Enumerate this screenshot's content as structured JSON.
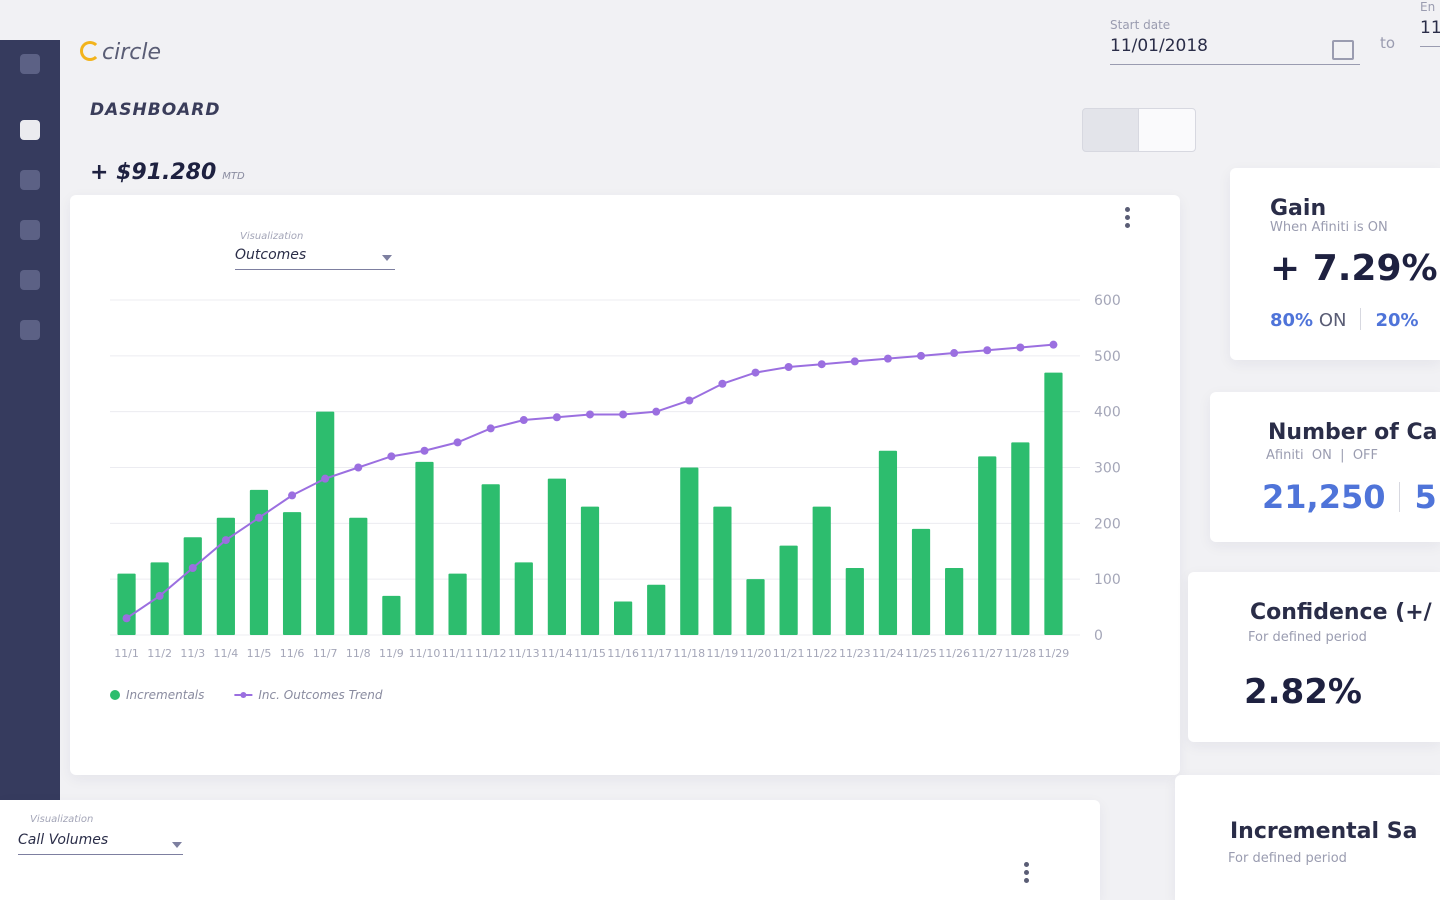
{
  "header": {
    "logo": "circle",
    "start_label": "Start date",
    "start_date": "11/01/2018",
    "to": "to",
    "end_label": "En",
    "end_date": "11"
  },
  "dashboard": {
    "title": "DASHBOARD",
    "total": "+ $91.280",
    "total_unit": "MTD"
  },
  "chart_card": {
    "visualization_label": "Visualization",
    "visualization": "Outcomes"
  },
  "chart_data": {
    "type": "bar",
    "categories": [
      "11/1",
      "11/2",
      "11/3",
      "11/4",
      "11/5",
      "11/6",
      "11/7",
      "11/8",
      "11/9",
      "11/10",
      "11/11",
      "11/12",
      "11/13",
      "11/14",
      "11/15",
      "11/16",
      "11/17",
      "11/18",
      "11/19",
      "11/20",
      "11/21",
      "11/22",
      "11/23",
      "11/24",
      "11/25",
      "11/26",
      "11/27",
      "11/28",
      "11/29"
    ],
    "series": [
      {
        "name": "Incrementals",
        "type": "bar",
        "color": "#2dbd6e",
        "values": [
          110,
          130,
          175,
          210,
          260,
          220,
          400,
          210,
          70,
          310,
          110,
          270,
          130,
          280,
          230,
          60,
          90,
          300,
          230,
          100,
          160,
          230,
          120,
          330,
          190,
          120,
          320,
          345,
          470
        ]
      },
      {
        "name": "Inc. Outcomes Trend",
        "type": "line",
        "color": "#9b6fe0",
        "values": [
          30,
          70,
          120,
          170,
          210,
          250,
          280,
          300,
          320,
          330,
          345,
          370,
          385,
          390,
          395,
          395,
          400,
          420,
          450,
          470,
          480,
          485,
          490,
          495,
          500,
          505,
          510,
          515,
          520
        ]
      }
    ],
    "ylim": [
      0,
      600
    ],
    "yticks": [
      0,
      100,
      200,
      300,
      400,
      500,
      600
    ],
    "y_axis_side": "right",
    "grid": true
  },
  "cards": [
    {
      "title": "Gain",
      "subtitle": "When Afiniti is ON",
      "value": "+ 7.29%",
      "on_value": "80%",
      "on_label": "ON",
      "off_value": "20%"
    },
    {
      "title": "Number of Ca",
      "subtitle": "Afiniti",
      "on_label": "ON",
      "off_label": "OFF",
      "on_value": "21,250",
      "off_value": "5"
    },
    {
      "title": "Confidence (+/",
      "subtitle": "For defined period",
      "value": "2.82%"
    },
    {
      "title": "Incremental Sa",
      "subtitle": "For defined period"
    }
  ],
  "second_card": {
    "visualization_label": "Visualization",
    "visualization": "Call Volumes"
  }
}
